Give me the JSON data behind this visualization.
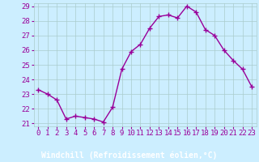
{
  "x": [
    0,
    1,
    2,
    3,
    4,
    5,
    6,
    7,
    8,
    9,
    10,
    11,
    12,
    13,
    14,
    15,
    16,
    17,
    18,
    19,
    20,
    21,
    22,
    23
  ],
  "y": [
    23.3,
    23.0,
    22.6,
    21.3,
    21.5,
    21.4,
    21.3,
    21.1,
    22.1,
    24.7,
    25.9,
    26.4,
    27.5,
    28.3,
    28.4,
    28.2,
    29.0,
    28.6,
    27.4,
    27.0,
    26.0,
    25.3,
    24.7,
    23.5
  ],
  "line_color": "#990099",
  "marker": "+",
  "marker_size": 4,
  "bg_color": "#cceeff",
  "grid_color": "#aacccc",
  "xlabel": "Windchill (Refroidissement éolien,°C)",
  "xlabel_fontsize": 7,
  "xlim": [
    -0.5,
    23.5
  ],
  "ylim": [
    20.8,
    29.2
  ],
  "yticks": [
    21,
    22,
    23,
    24,
    25,
    26,
    27,
    28,
    29
  ],
  "xticks": [
    0,
    1,
    2,
    3,
    4,
    5,
    6,
    7,
    8,
    9,
    10,
    11,
    12,
    13,
    14,
    15,
    16,
    17,
    18,
    19,
    20,
    21,
    22,
    23
  ],
  "tick_fontsize": 6.5,
  "line_width": 1.0,
  "bottom_bar_color": "#9900aa",
  "bottom_bar_text_color": "#ffffff"
}
